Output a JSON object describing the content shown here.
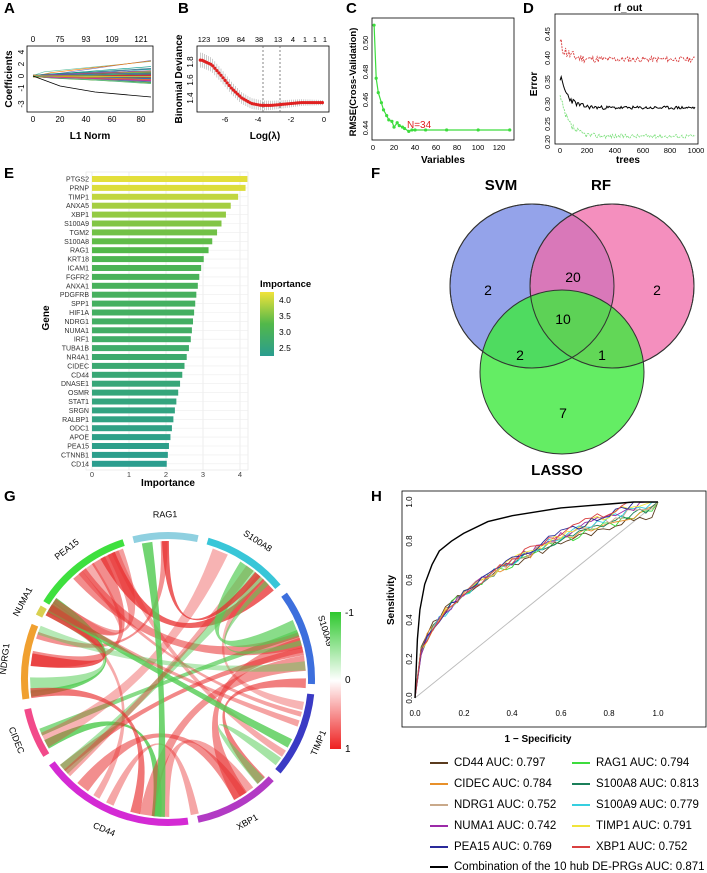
{
  "panels": {
    "A": {
      "label": "A",
      "xlabel": "L1 Norm",
      "ylabel": "Coefficients",
      "top_ticks": [
        "0",
        "75",
        "93",
        "109",
        "121"
      ],
      "x_ticks": [
        "0",
        "20",
        "40",
        "60",
        "80"
      ],
      "y_ticks": [
        "4",
        "2",
        "0",
        "-1",
        "-3"
      ]
    },
    "B": {
      "label": "B",
      "xlabel": "Log(λ)",
      "ylabel": "Binomial Deviance",
      "top_ticks": [
        "123",
        "109",
        "84",
        "38",
        "13",
        "4",
        "1",
        "1",
        "1"
      ],
      "x_ticks": [
        "-6",
        "-4",
        "-2",
        "0"
      ],
      "y_ticks": [
        "1.8",
        "1.6",
        "1.4"
      ]
    },
    "C": {
      "label": "C",
      "xlabel": "Variables",
      "ylabel": "RMSE(Cross-Validation)",
      "annotation": "N=34",
      "x_ticks": [
        "0",
        "20",
        "40",
        "60",
        "80",
        "100",
        "120"
      ],
      "y_ticks": [
        "0.50",
        "0.48",
        "0.46",
        "0.44"
      ]
    },
    "D": {
      "label": "D",
      "title": "rf_out",
      "xlabel": "trees",
      "ylabel": "Error",
      "x_ticks": [
        "0",
        "200",
        "400",
        "600",
        "800",
        "1000"
      ],
      "y_ticks": [
        "0.45",
        "0.40",
        "0.35",
        "0.30",
        "0.25",
        "0.20"
      ]
    },
    "E": {
      "label": "E",
      "xlabel": "Importance",
      "ylabel": "Gene",
      "legend_title": "Importance",
      "legend_ticks": [
        "4.0",
        "3.5",
        "3.0",
        "2.5"
      ],
      "x_ticks": [
        "0",
        "1",
        "2",
        "3",
        "4"
      ]
    },
    "F": {
      "label": "F",
      "sets": [
        "SVM",
        "RF",
        "LASSO"
      ],
      "svm_only": "2",
      "rf_only": "2",
      "lasso_only": "7",
      "svm_rf": "20",
      "svm_lasso": "2",
      "rf_lasso": "1",
      "all": "10"
    },
    "G": {
      "label": "G",
      "genes": [
        "PEA15",
        "RAG1",
        "S100A8",
        "S100A9",
        "TIMP1",
        "XBP1",
        "CD44",
        "CIDEC",
        "NDRG1",
        "NUMA1"
      ],
      "legend_ticks": [
        "-1",
        "0",
        "1"
      ]
    },
    "H": {
      "label": "H",
      "xlabel": "1 − Specificity",
      "ylabel": "Sensitivity",
      "ticks": [
        "0.0",
        "0.2",
        "0.4",
        "0.6",
        "0.8",
        "1.0"
      ],
      "legend": [
        {
          "text": "CD44 AUC: 0.797",
          "color": "#5a3b1e"
        },
        {
          "text": "RAG1 AUC: 0.794",
          "color": "#3ddc3d"
        },
        {
          "text": "CIDEC AUC: 0.784",
          "color": "#e8902a"
        },
        {
          "text": "S100A8 AUC: 0.813",
          "color": "#1b7f5a"
        },
        {
          "text": "NDRG1 AUC: 0.752",
          "color": "#c9a98a"
        },
        {
          "text": "S100A9 AUC: 0.779",
          "color": "#36cfe0"
        },
        {
          "text": "NUMA1 AUC: 0.742",
          "color": "#9c2aa8"
        },
        {
          "text": "TIMP1 AUC: 0.791",
          "color": "#f0e43a"
        },
        {
          "text": "PEA15 AUC: 0.769",
          "color": "#2a2a9a"
        },
        {
          "text": "XBP1 AUC: 0.752",
          "color": "#d94040"
        },
        {
          "text": "Combination of the 10 hub DE-PRGs AUC: 0.871",
          "color": "#000000"
        }
      ]
    }
  },
  "chart_data": [
    {
      "type": "bar",
      "panel": "E",
      "title": "",
      "xlabel": "Importance",
      "ylabel": "Gene",
      "orientation": "horizontal",
      "xlim": [
        0,
        4.3
      ],
      "categories": [
        "PTGS2",
        "PRNP",
        "TIMP1",
        "ANXA5",
        "XBP1",
        "S100A9",
        "TGM2",
        "S100A8",
        "RAG1",
        "KRT18",
        "ICAM1",
        "FGFR2",
        "ANXA1",
        "PDGFRB",
        "SPP1",
        "HIF1A",
        "NDRG1",
        "NUMA1",
        "IRF1",
        "TUBA1B",
        "NR4A1",
        "CIDEC",
        "CD44",
        "DNASE1",
        "OSMR",
        "STAT1",
        "SRGN",
        "RALBP1",
        "ODC1",
        "APOE",
        "PEA15",
        "CTNNB1",
        "CD14"
      ],
      "values": [
        4.2,
        4.15,
        3.95,
        3.75,
        3.62,
        3.5,
        3.38,
        3.25,
        3.15,
        3.02,
        2.95,
        2.9,
        2.86,
        2.82,
        2.79,
        2.76,
        2.73,
        2.7,
        2.67,
        2.62,
        2.56,
        2.5,
        2.44,
        2.38,
        2.33,
        2.28,
        2.24,
        2.2,
        2.16,
        2.12,
        2.08,
        2.05,
        2.02
      ]
    },
    {
      "type": "line",
      "panel": "C",
      "xlabel": "Variables",
      "ylabel": "RMSE(Cross-Validation)",
      "x": [
        1,
        3,
        5,
        8,
        10,
        13,
        15,
        18,
        20,
        23,
        25,
        28,
        30,
        34,
        37,
        40,
        50,
        70,
        100,
        130
      ],
      "y": [
        0.515,
        0.478,
        0.468,
        0.461,
        0.456,
        0.452,
        0.449,
        0.448,
        0.444,
        0.447,
        0.445,
        0.444,
        0.443,
        0.441,
        0.442,
        0.442,
        0.442,
        0.442,
        0.442,
        0.442
      ],
      "xlim": [
        0,
        135
      ],
      "ylim": [
        0.435,
        0.52
      ]
    },
    {
      "type": "line",
      "panel": "B",
      "xlabel": "Log(λ)",
      "ylabel": "Binomial Deviance",
      "x": [
        -7.2,
        -6.6,
        -6.0,
        -5.4,
        -4.8,
        -4.2,
        -3.6,
        -3.0,
        -2.4,
        -1.8,
        -1.2,
        -0.6,
        0.2
      ],
      "y": [
        1.85,
        1.8,
        1.68,
        1.55,
        1.45,
        1.39,
        1.37,
        1.37,
        1.38,
        1.39,
        1.4,
        1.4,
        1.4
      ],
      "xlim": [
        -7.5,
        0.5
      ],
      "ylim": [
        1.3,
        2.0
      ]
    },
    {
      "type": "line",
      "panel": "H",
      "xlabel": "1 − Specificity",
      "ylabel": "Sensitivity",
      "series": [
        {
          "name": "Combination",
          "x": [
            0,
            0.01,
            0.02,
            0.04,
            0.07,
            0.1,
            0.15,
            0.2,
            0.3,
            0.4,
            0.5,
            0.6,
            0.7,
            0.8,
            0.9,
            1.0
          ],
          "y": [
            0,
            0.3,
            0.45,
            0.58,
            0.68,
            0.75,
            0.8,
            0.84,
            0.9,
            0.93,
            0.95,
            0.97,
            0.98,
            0.99,
            1.0,
            1.0
          ]
        },
        {
          "name": "S100A8",
          "x": [
            0,
            0.02,
            0.05,
            0.1,
            0.15,
            0.2,
            0.3,
            0.4,
            0.5,
            0.6,
            0.7,
            0.8,
            0.9,
            1.0
          ],
          "y": [
            0,
            0.22,
            0.4,
            0.52,
            0.6,
            0.66,
            0.75,
            0.82,
            0.88,
            0.92,
            0.95,
            0.98,
            0.99,
            1.0
          ]
        },
        {
          "name": "NUMA1",
          "x": [
            0,
            0.02,
            0.05,
            0.1,
            0.15,
            0.2,
            0.3,
            0.4,
            0.5,
            0.6,
            0.7,
            0.8,
            0.9,
            1.0
          ],
          "y": [
            0,
            0.1,
            0.25,
            0.38,
            0.47,
            0.54,
            0.65,
            0.73,
            0.8,
            0.86,
            0.91,
            0.95,
            0.98,
            1.0
          ]
        }
      ],
      "xlim": [
        0,
        1
      ],
      "ylim": [
        0,
        1
      ]
    }
  ]
}
